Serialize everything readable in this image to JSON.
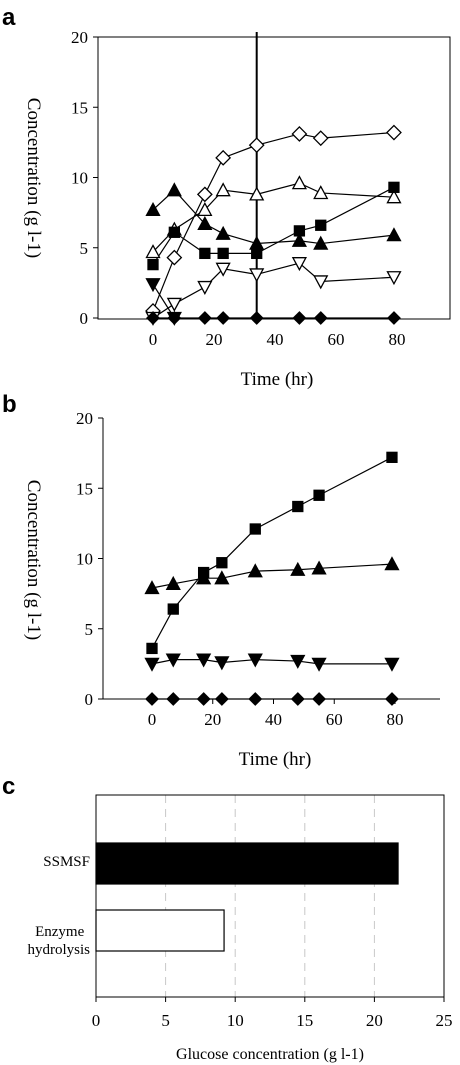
{
  "panels": {
    "a": {
      "letter": "a"
    },
    "b": {
      "letter": "b"
    },
    "c": {
      "letter": "c"
    }
  },
  "chart_data": [
    {
      "type": "line",
      "panel": "a",
      "xlabel": "Time (hr)",
      "ylabel": "Concentration (g l-1)",
      "xlim": [
        -15,
        97
      ],
      "ylim": [
        0,
        20
      ],
      "xticks": [
        0,
        20,
        40,
        60,
        80
      ],
      "yticks": [
        0,
        5,
        10,
        15,
        20
      ],
      "vline_x": 34,
      "series": [
        {
          "marker": "diamond-open",
          "x": [
            0,
            7,
            17,
            23,
            34,
            48,
            55,
            79
          ],
          "y": [
            0.5,
            4.3,
            8.8,
            11.4,
            12.3,
            13.1,
            12.8,
            13.2
          ]
        },
        {
          "marker": "triangle-up-open",
          "x": [
            0,
            7,
            17,
            23,
            34,
            48,
            55,
            79
          ],
          "y": [
            4.7,
            6.3,
            7.7,
            9.1,
            8.8,
            9.6,
            8.9,
            8.6
          ]
        },
        {
          "marker": "square-filled",
          "x": [
            0,
            7,
            17,
            23,
            34,
            48,
            55,
            79
          ],
          "y": [
            3.8,
            6.1,
            4.6,
            4.6,
            4.6,
            6.2,
            6.6,
            9.3
          ]
        },
        {
          "marker": "triangle-up-filled",
          "x": [
            0,
            7,
            17,
            23,
            34,
            48,
            55,
            79
          ],
          "y": [
            7.7,
            9.1,
            6.7,
            6.0,
            5.3,
            5.5,
            5.3,
            5.9
          ]
        },
        {
          "marker": "triangle-down-open",
          "x": [
            0,
            7,
            17,
            23,
            34,
            48,
            55,
            79
          ],
          "y": [
            0.0,
            1.0,
            2.2,
            3.5,
            3.1,
            3.9,
            2.6,
            2.9
          ]
        },
        {
          "marker": "triangle-down-filled",
          "x": [
            0,
            7
          ],
          "y": [
            2.4,
            0.0
          ]
        },
        {
          "marker": "diamond-filled",
          "x": [
            0,
            7,
            17,
            23,
            34,
            48,
            55,
            79
          ],
          "y": [
            0,
            0,
            0,
            0,
            0,
            0,
            0,
            0
          ]
        }
      ]
    },
    {
      "type": "line",
      "panel": "b",
      "xlabel": "Time (hr)",
      "ylabel": "Concentration (g l-1)",
      "xlim": [
        -15,
        97
      ],
      "ylim": [
        0,
        20
      ],
      "xticks": [
        0,
        20,
        40,
        60,
        80
      ],
      "yticks": [
        0,
        5,
        10,
        15,
        20
      ],
      "series": [
        {
          "marker": "square-filled",
          "x": [
            0,
            7,
            17,
            23,
            34,
            48,
            55,
            79
          ],
          "y": [
            3.6,
            6.4,
            9.0,
            9.7,
            12.1,
            13.7,
            14.5,
            17.2
          ]
        },
        {
          "marker": "triangle-up-filled",
          "x": [
            0,
            7,
            17,
            23,
            34,
            48,
            55,
            79
          ],
          "y": [
            7.9,
            8.2,
            8.6,
            8.6,
            9.1,
            9.2,
            9.3,
            9.6
          ]
        },
        {
          "marker": "triangle-down-filled",
          "x": [
            0,
            7,
            17,
            23,
            34,
            48,
            55,
            79
          ],
          "y": [
            2.5,
            2.8,
            2.8,
            2.6,
            2.8,
            2.7,
            2.5,
            2.5
          ]
        },
        {
          "marker": "diamond-filled",
          "x": [
            0,
            7,
            17,
            23,
            34,
            48,
            55,
            79
          ],
          "y": [
            0,
            0,
            0,
            0,
            0,
            0,
            0,
            0
          ]
        }
      ]
    },
    {
      "type": "bar",
      "panel": "c",
      "orientation": "horizontal",
      "categories": [
        "SSMSF",
        "Enzyme hydrolysis"
      ],
      "values": [
        21.7,
        9.2
      ],
      "bar_colors": [
        "#000000",
        "#ffffff"
      ],
      "xlabel": "Glucose concentration (g l-1)",
      "xlim": [
        0,
        25
      ],
      "xticks": [
        0,
        5,
        10,
        15,
        20,
        25
      ],
      "grid": "vertical-dashed"
    }
  ]
}
